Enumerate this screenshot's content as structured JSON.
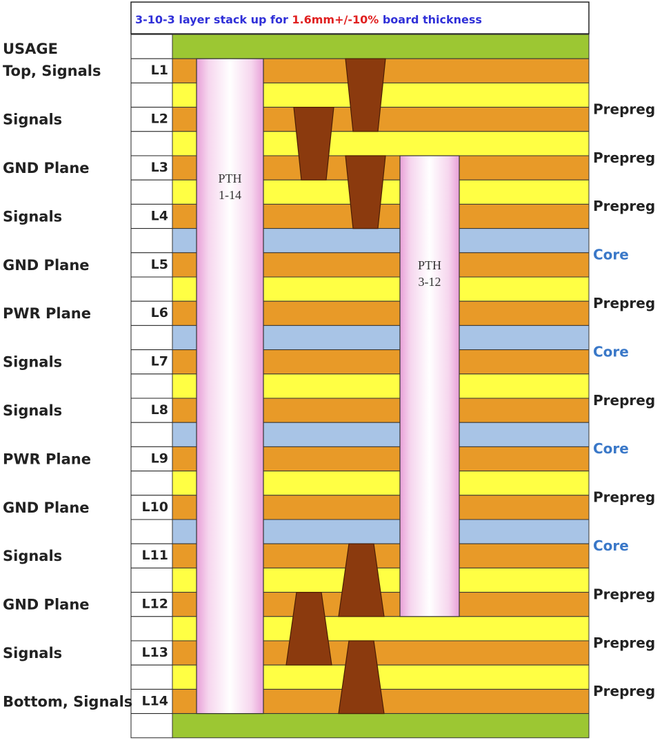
{
  "title": {
    "prefix": "3-10-3 layer stack up for ",
    "highlight": "1.6mm+/-10%",
    "suffix": " board thickness"
  },
  "usage_header": "USAGE",
  "layers": [
    {
      "id": "L1",
      "usage": "Top, Signals"
    },
    {
      "id": "L2",
      "usage": "Signals"
    },
    {
      "id": "L3",
      "usage": "GND Plane"
    },
    {
      "id": "L4",
      "usage": "Signals"
    },
    {
      "id": "L5",
      "usage": "GND Plane"
    },
    {
      "id": "L6",
      "usage": "PWR Plane"
    },
    {
      "id": "L7",
      "usage": "Signals"
    },
    {
      "id": "L8",
      "usage": "Signals"
    },
    {
      "id": "L9",
      "usage": "PWR Plane"
    },
    {
      "id": "L10",
      "usage": "GND Plane"
    },
    {
      "id": "L11",
      "usage": "Signals"
    },
    {
      "id": "L12",
      "usage": "GND Plane"
    },
    {
      "id": "L13",
      "usage": "Signals"
    },
    {
      "id": "L14",
      "usage": "Bottom, Signals"
    }
  ],
  "dielectrics": [
    "Prepreg",
    "Prepreg",
    "Prepreg",
    "Core",
    "Prepreg",
    "Core",
    "Prepreg",
    "Core",
    "Prepreg",
    "Core",
    "Prepreg",
    "Prepreg",
    "Prepreg"
  ],
  "pths": [
    {
      "label_line1": "PTH",
      "label_line2": "1-14",
      "from_layer": 1,
      "to_layer": 14
    },
    {
      "label_line1": "PTH",
      "label_line2": "3-12",
      "from_layer": 3,
      "to_layer": 12
    }
  ],
  "microvias": [
    {
      "from_layer": 1,
      "to_layer": 2
    },
    {
      "from_layer": 2,
      "to_layer": 3
    },
    {
      "from_layer": 3,
      "to_layer": 4
    },
    {
      "from_layer": 11,
      "to_layer": 12
    },
    {
      "from_layer": 12,
      "to_layer": 13
    },
    {
      "from_layer": 13,
      "to_layer": 14
    }
  ],
  "colors": {
    "title_blue": "#3030d8",
    "title_red": "#e02020",
    "copper": "#e89a28",
    "prepreg": "#ffff44",
    "core": "#a8c4e6",
    "soldermask": "#9cc733",
    "via_fill": "#8b3a0e",
    "pth_center": "#ffffff",
    "pth_edge": "#e8a0d8",
    "core_text": "#3a78c8",
    "prepreg_text": "#222222"
  }
}
